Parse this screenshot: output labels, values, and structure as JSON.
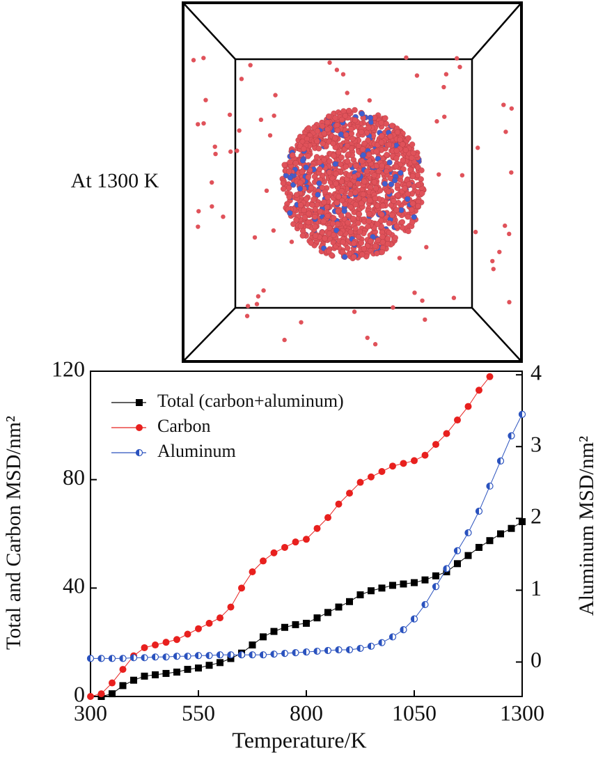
{
  "image_label": "At 1300 K",
  "chart_data": {
    "type": "line",
    "xlabel": "Temperature/K",
    "ylabel": "Total and Carbon MSD/nm²",
    "y2label": "Aluminum MSD/nm²",
    "xlim": [
      300,
      1300
    ],
    "xticks": [
      300,
      550,
      800,
      1050,
      1300
    ],
    "ylim": [
      0,
      120
    ],
    "yticks": [
      0,
      40,
      80,
      120
    ],
    "y2lim": [
      -0.48,
      4.05
    ],
    "y2ticks": [
      0,
      1,
      2,
      3,
      4
    ],
    "legend": "upper left",
    "x": [
      300,
      325,
      350,
      375,
      400,
      425,
      450,
      475,
      500,
      525,
      550,
      575,
      600,
      625,
      650,
      675,
      700,
      725,
      750,
      775,
      800,
      825,
      850,
      875,
      900,
      925,
      950,
      975,
      1000,
      1025,
      1050,
      1075,
      1100,
      1125,
      1150,
      1175,
      1200,
      1225,
      1250,
      1275,
      1300
    ],
    "series": [
      {
        "name": "Total (carbon+aluminum)",
        "color": "#000000",
        "marker": "square",
        "axis": "y",
        "values": [
          null,
          0,
          1,
          4,
          6,
          7.5,
          8,
          8.5,
          9,
          10,
          10.5,
          11.5,
          12.5,
          14,
          16,
          19,
          22,
          24,
          25.5,
          26.5,
          27,
          29,
          31,
          33,
          35,
          37.5,
          39,
          40,
          41,
          41.5,
          42,
          43,
          44.5,
          46,
          49,
          52,
          55,
          57.5,
          60,
          62,
          64.5
        ]
      },
      {
        "name": "Carbon",
        "color": "#e8201e",
        "marker": "circle",
        "axis": "y",
        "values": [
          0,
          1,
          5,
          10,
          15,
          18,
          19,
          20,
          21,
          23,
          25,
          27,
          29,
          33,
          40,
          46,
          50,
          53,
          55,
          57,
          58,
          62,
          66,
          71,
          75,
          79,
          81,
          83,
          85,
          86,
          87,
          89,
          93,
          97,
          102,
          107,
          113,
          118,
          null,
          null,
          null
        ]
      },
      {
        "name": "Aluminum",
        "color": "#2a52be",
        "marker": "half-circle",
        "axis": "y2",
        "values": [
          0.05,
          0.05,
          0.05,
          0.05,
          0.06,
          0.06,
          0.07,
          0.07,
          0.08,
          0.08,
          0.09,
          0.09,
          0.1,
          0.1,
          0.1,
          0.1,
          0.1,
          0.11,
          0.12,
          0.13,
          0.14,
          0.15,
          0.16,
          0.17,
          0.17,
          0.19,
          0.22,
          0.27,
          0.35,
          0.45,
          0.6,
          0.8,
          1.05,
          1.3,
          1.55,
          1.8,
          2.1,
          2.45,
          2.8,
          3.15,
          3.45
        ]
      }
    ]
  }
}
